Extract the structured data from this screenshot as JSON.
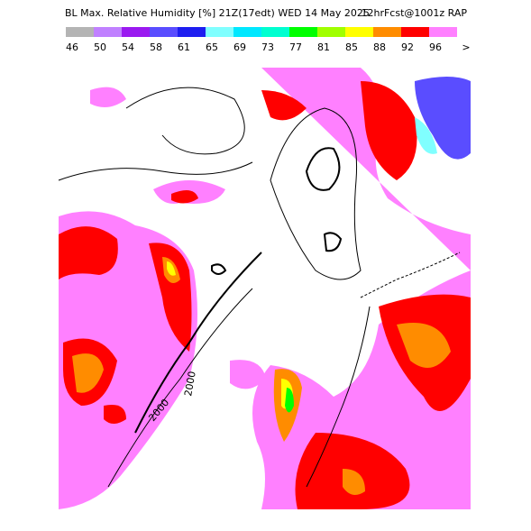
{
  "header": {
    "title": "BL Max. Relative Humidity [%] 21Z(17edt) WED 14 May 2025",
    "source": "12hrFcst@1001z RAP"
  },
  "legend": {
    "items": [
      {
        "label": "46",
        "color": "#b4b4b4"
      },
      {
        "label": "50",
        "color": "#c080ff"
      },
      {
        "label": "54",
        "color": "#9a1af0"
      },
      {
        "label": "58",
        "color": "#5a4dff"
      },
      {
        "label": "61",
        "color": "#1e1ef0"
      },
      {
        "label": "65",
        "color": "#80ffff"
      },
      {
        "label": "69",
        "color": "#00e8ff"
      },
      {
        "label": "73",
        "color": "#00ffd0"
      },
      {
        "label": "77",
        "color": "#00ff00"
      },
      {
        "label": "81",
        "color": "#a0ff00"
      },
      {
        "label": "85",
        "color": "#ffff00"
      },
      {
        "label": "88",
        "color": "#ff8c00"
      },
      {
        "label": "92",
        "color": "#ff0000"
      },
      {
        "label": "96",
        "color": "#ff80ff"
      }
    ],
    "overflow": ">"
  },
  "map": {
    "contour_labels": [
      "2000",
      "2000"
    ]
  }
}
